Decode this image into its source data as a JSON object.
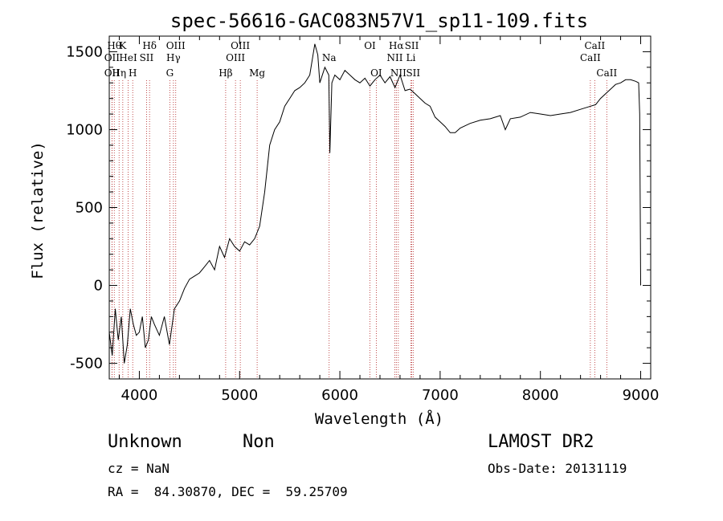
{
  "chart_data": {
    "type": "line",
    "title": "spec-56616-GAC083N57V1_sp11-109.fits",
    "xlabel": "Wavelength (Å)",
    "ylabel": "Flux (relative)",
    "xlim": [
      3700,
      9100
    ],
    "ylim": [
      -600,
      1600
    ],
    "xticks": [
      4000,
      5000,
      6000,
      7000,
      8000,
      9000
    ],
    "yticks": [
      -500,
      0,
      500,
      1000,
      1500
    ],
    "grid": false,
    "series": [
      {
        "x": [
          3700,
          3730,
          3760,
          3790,
          3820,
          3850,
          3880,
          3910,
          3940,
          3970,
          4000,
          4030,
          4060,
          4090,
          4120,
          4150,
          4200,
          4250,
          4300,
          4350,
          4400,
          4450,
          4500,
          4550,
          4600,
          4650,
          4700,
          4750,
          4800,
          4850,
          4900,
          4950,
          5000,
          5050,
          5100,
          5150,
          5200,
          5250,
          5300,
          5350,
          5400,
          5450,
          5500,
          5550,
          5600,
          5650,
          5700,
          5750,
          5780,
          5800,
          5850,
          5890,
          5900,
          5920,
          5950,
          6000,
          6050,
          6100,
          6150,
          6200,
          6250,
          6300,
          6350,
          6400,
          6450,
          6500,
          6550,
          6600,
          6650,
          6700,
          6750,
          6800,
          6850,
          6900,
          6950,
          7000,
          7050,
          7100,
          7150,
          7200,
          7300,
          7400,
          7500,
          7600,
          7650,
          7700,
          7800,
          7900,
          8000,
          8100,
          8200,
          8300,
          8400,
          8500,
          8550,
          8600,
          8700,
          8750,
          8800,
          8850,
          8900,
          8950,
          8980,
          8990,
          9000
        ],
        "y": [
          -300,
          -450,
          -150,
          -350,
          -200,
          -500,
          -380,
          -150,
          -250,
          -320,
          -300,
          -200,
          -400,
          -350,
          -200,
          -250,
          -320,
          -200,
          -380,
          -150,
          -100,
          -20,
          40,
          60,
          80,
          120,
          160,
          100,
          250,
          180,
          300,
          250,
          220,
          280,
          260,
          300,
          380,
          600,
          900,
          1000,
          1050,
          1150,
          1200,
          1250,
          1270,
          1300,
          1350,
          1550,
          1480,
          1300,
          1400,
          1350,
          850,
          1300,
          1350,
          1320,
          1380,
          1350,
          1320,
          1300,
          1330,
          1280,
          1320,
          1350,
          1300,
          1340,
          1270,
          1350,
          1250,
          1260,
          1230,
          1200,
          1170,
          1150,
          1080,
          1050,
          1020,
          980,
          980,
          1010,
          1040,
          1060,
          1070,
          1090,
          1000,
          1070,
          1080,
          1110,
          1100,
          1090,
          1100,
          1110,
          1130,
          1150,
          1160,
          1200,
          1260,
          1290,
          1300,
          1320,
          1320,
          1310,
          1300,
          1100,
          0
        ]
      }
    ],
    "line_markers": [
      {
        "wave": 3750,
        "row": 1,
        "label": "Hθ"
      },
      {
        "wave": 3727,
        "row": 2,
        "label": "OII"
      },
      {
        "wave": 3727,
        "row": 3,
        "label": "OII"
      },
      {
        "wave": 3798,
        "row": 3,
        "label": "Hη"
      },
      {
        "wave": 3835,
        "row": 1,
        "label": "K"
      },
      {
        "wave": 3889,
        "row": 2,
        "label": "HeI"
      },
      {
        "wave": 3934,
        "row": 3,
        "label": "H"
      },
      {
        "wave": 4072,
        "row": 2,
        "label": "SII"
      },
      {
        "wave": 4102,
        "row": 1,
        "label": "Hδ"
      },
      {
        "wave": 4363,
        "row": 1,
        "label": "OIII"
      },
      {
        "wave": 4340,
        "row": 2,
        "label": "Hγ"
      },
      {
        "wave": 4304,
        "row": 3,
        "label": "G"
      },
      {
        "wave": 4861,
        "row": 3,
        "label": "Hβ"
      },
      {
        "wave": 4959,
        "row": 2,
        "label": "OIII"
      },
      {
        "wave": 5007,
        "row": 1,
        "label": "OIII"
      },
      {
        "wave": 5175,
        "row": 3,
        "label": "Mg"
      },
      {
        "wave": 5893,
        "row": 2,
        "label": "Na"
      },
      {
        "wave": 6300,
        "row": 1,
        "label": "OI"
      },
      {
        "wave": 6363,
        "row": 3,
        "label": "OI"
      },
      {
        "wave": 6548,
        "row": 2,
        "label": "NII"
      },
      {
        "wave": 6563,
        "row": 1,
        "label": "Hα"
      },
      {
        "wave": 6583,
        "row": 3,
        "label": "NII"
      },
      {
        "wave": 6708,
        "row": 2,
        "label": "Li"
      },
      {
        "wave": 6717,
        "row": 1,
        "label": "SII"
      },
      {
        "wave": 6731,
        "row": 3,
        "label": "SII"
      },
      {
        "wave": 8498,
        "row": 2,
        "label": "CaII"
      },
      {
        "wave": 8542,
        "row": 1,
        "label": "CaII"
      },
      {
        "wave": 8662,
        "row": 3,
        "label": "CaII"
      }
    ]
  },
  "info": {
    "object_class": "Unknown",
    "subclass": "Non",
    "cz": "cz = NaN",
    "coords": "RA =  84.30870, DEC =  59.25709",
    "survey": "LAMOST DR2",
    "obs_date": "Obs-Date: 20131119"
  }
}
